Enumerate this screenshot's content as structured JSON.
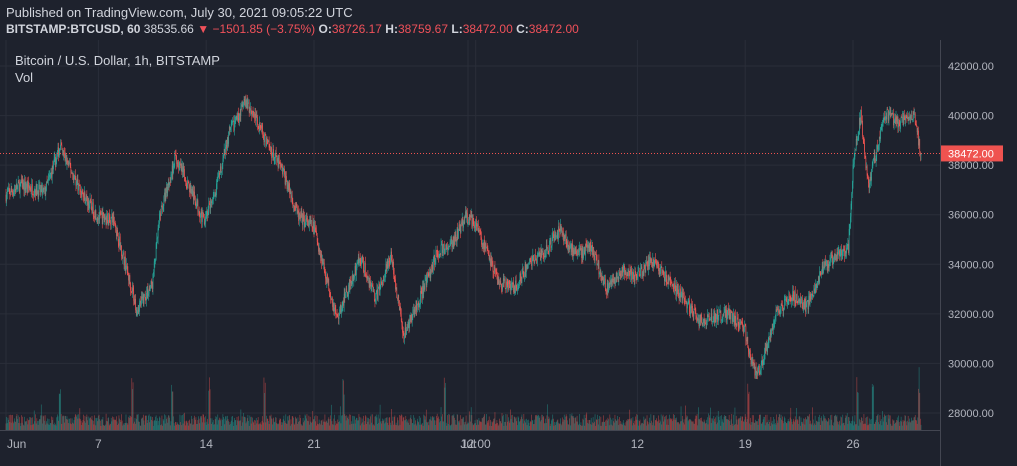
{
  "header": {
    "published": "Published on TradingView.com, July 30, 2021 09:05:22 UTC",
    "symbol": "BITSTAMP:BTCUSD, 60",
    "last": "38535.66",
    "change_arrow": "▼",
    "change": "−1501.85 (−3.75%)",
    "open_label": "O:",
    "open": "38726.17",
    "high_label": "H:",
    "high": "38759.67",
    "low_label": "L:",
    "low": "38472.00",
    "close_label": "C:",
    "close": "38472.00"
  },
  "legend": {
    "title": "Bitcoin / U.S. Dollar, 1h, BITSTAMP",
    "volume": "Vol"
  },
  "colors": {
    "background": "#1e222d",
    "up": "#26a69a",
    "down": "#ef5350",
    "grid": "#2a2e39",
    "price_line": "#ef5350"
  },
  "chart_data": {
    "type": "candlestick",
    "title": "Bitcoin / U.S. Dollar, 1h, BITSTAMP",
    "interval": "1h",
    "x_ticks": [
      {
        "label": "Jun",
        "day": 0
      },
      {
        "label": "7",
        "day": 6
      },
      {
        "label": "14",
        "day": 13
      },
      {
        "label": "21",
        "day": 20
      },
      {
        "label": "Jul",
        "day": 30
      },
      {
        "label": "12:00",
        "day": 30.5
      },
      {
        "label": "12",
        "day": 41
      },
      {
        "label": "19",
        "day": 48
      },
      {
        "label": "26",
        "day": 55
      }
    ],
    "y_ticks": [
      "42000.00",
      "40000.00",
      "38000.00",
      "36000.00",
      "34000.00",
      "32000.00",
      "30000.00",
      "28000.00"
    ],
    "ylim": [
      27300,
      43000
    ],
    "xlim_days": [
      0,
      59.4
    ],
    "current_price": "38472.00",
    "close_path": {
      "day": [
        0,
        1,
        2.5,
        3.5,
        5,
        6,
        7,
        7.7,
        8.5,
        9.5,
        10,
        11,
        12,
        12.8,
        13.5,
        14.5,
        15.5,
        16,
        17,
        18,
        19,
        20,
        21,
        21.5,
        22.2,
        23,
        24,
        25,
        25.8,
        27,
        28,
        29,
        29.8,
        30.5,
        31.2,
        32,
        33,
        34,
        35,
        36,
        37,
        38,
        39,
        40,
        41,
        42,
        43,
        44,
        45,
        46,
        47,
        48,
        48.5,
        49,
        50,
        51,
        52,
        53,
        54,
        54.7,
        55,
        55.5,
        56,
        56.5,
        57,
        58,
        59,
        59.4
      ],
      "close": [
        36800,
        37200,
        36900,
        38700,
        36800,
        35900,
        35800,
        34100,
        32200,
        33200,
        36000,
        38300,
        37000,
        35800,
        36600,
        39300,
        40500,
        40200,
        38800,
        37700,
        35900,
        35500,
        33000,
        31800,
        33000,
        34300,
        32600,
        34400,
        31200,
        32800,
        34500,
        34800,
        35900,
        35700,
        34500,
        33300,
        33000,
        34100,
        34500,
        35400,
        34300,
        34700,
        33000,
        33700,
        33500,
        34200,
        33300,
        32600,
        31700,
        31900,
        32000,
        31300,
        29800,
        29700,
        32000,
        32800,
        32300,
        33800,
        34400,
        34600,
        38000,
        40000,
        37200,
        38500,
        40100,
        39700,
        40000,
        38472
      ]
    },
    "volume": {
      "label": "Vol",
      "spikes_day": [
        3.5,
        8.2,
        10.8,
        13.2,
        16.8,
        21.9,
        28.5,
        48.2,
        55.3,
        56.3,
        59.3
      ]
    }
  }
}
